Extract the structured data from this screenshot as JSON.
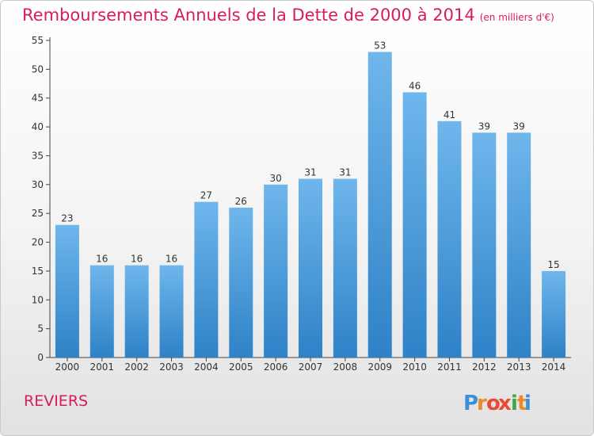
{
  "title": "Remboursements Annuels de la Dette de 2000 à 2014",
  "title_unit": "(en milliers d'€)",
  "commune": "REVIERS",
  "logo": {
    "text": "Proxiti",
    "letters": [
      "P",
      "r",
      "o",
      "x",
      "i",
      "t",
      "i"
    ],
    "colors": [
      "#3a8fd8",
      "#e98a2b",
      "#e94b35",
      "#e94b35",
      "#3aa84a",
      "#e98a2b",
      "#3a8fd8"
    ]
  },
  "colors": {
    "accent": "#d81b60",
    "bar_top": "#6fb6ec",
    "bar_bottom": "#2e82c7"
  },
  "chart_data": {
    "type": "bar",
    "title": "Remboursements Annuels de la Dette de 2000 à 2014",
    "categories": [
      "2000",
      "2001",
      "2002",
      "2003",
      "2004",
      "2005",
      "2006",
      "2007",
      "2008",
      "2009",
      "2010",
      "2011",
      "2012",
      "2013",
      "2014"
    ],
    "values": [
      23,
      16,
      16,
      16,
      27,
      26,
      30,
      31,
      31,
      53,
      46,
      41,
      39,
      39,
      15
    ],
    "yticks": [
      0,
      5,
      10,
      15,
      20,
      25,
      30,
      35,
      40,
      45,
      50,
      55
    ],
    "ylim": [
      0,
      55
    ],
    "xlabel": "",
    "ylabel": "",
    "grid": false,
    "data_labels": true
  }
}
